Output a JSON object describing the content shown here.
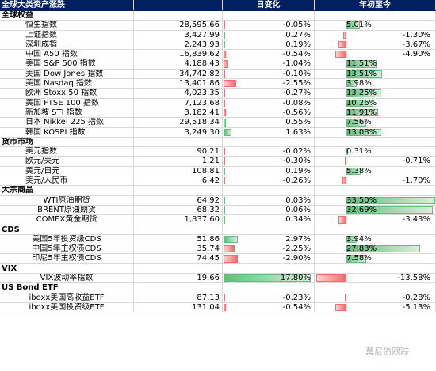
{
  "header": {
    "title": "全球大类资产涨跌",
    "day_label": "日变化",
    "ytd_label": "年初至今"
  },
  "sections": [
    {
      "name": "全球权益",
      "rows": [
        {
          "name": "恒生指数",
          "price": "28,595.66",
          "day": -0.05,
          "day_text": "-0.05%",
          "ytd": 5.01,
          "ytd_text": "5.01%"
        },
        {
          "name": "上证指数",
          "price": "3,427.99",
          "day": 0.27,
          "day_text": "0.27%",
          "ytd": -1.3,
          "ytd_text": "-1.30%"
        },
        {
          "name": "深圳成指",
          "price": "2,243.93",
          "day": 0.19,
          "day_text": "0.19%",
          "ytd": -3.67,
          "ytd_text": "-3.67%"
        },
        {
          "name": "中国 A50 指数",
          "price": "16,839.62",
          "day": -0.54,
          "day_text": "-0.54%",
          "ytd": -4.9,
          "ytd_text": "-4.90%"
        },
        {
          "name": "美国 S&P 500 指数",
          "price": "4,188.43",
          "day": -1.04,
          "day_text": "-1.04%",
          "ytd": 11.51,
          "ytd_text": "11.51%"
        },
        {
          "name": "美国 Dow Jones 指数",
          "price": "34,742.82",
          "day": -0.1,
          "day_text": "-0.10%",
          "ytd": 13.51,
          "ytd_text": "13.51%"
        },
        {
          "name": "美国 Nasdaq 指数",
          "price": "13,401.86",
          "day": -2.55,
          "day_text": "-2.55%",
          "ytd": 3.98,
          "ytd_text": "3.98%"
        },
        {
          "name": "欧洲 Stoxx 50 指数",
          "price": "4,023.35",
          "day": -0.27,
          "day_text": "-0.27%",
          "ytd": 13.25,
          "ytd_text": "13.25%"
        },
        {
          "name": "美国 FTSE 100 指数",
          "price": "7,123.68",
          "day": -0.08,
          "day_text": "-0.08%",
          "ytd": 10.26,
          "ytd_text": "10.26%"
        },
        {
          "name": "新加坡 STI 指数",
          "price": "3,182.41",
          "day": -0.56,
          "day_text": "-0.56%",
          "ytd": 11.91,
          "ytd_text": "11.91%"
        },
        {
          "name": "日本 Nikkei 225 指数",
          "price": "29,518.34",
          "day": 0.55,
          "day_text": "0.55%",
          "ytd": 7.56,
          "ytd_text": "7.56%"
        },
        {
          "name": "韩国 KOSPI 指数",
          "price": "3,249.30",
          "day": 1.63,
          "day_text": "1.63%",
          "ytd": 13.08,
          "ytd_text": "13.08%"
        }
      ]
    },
    {
      "name": "货币市场",
      "rows": [
        {
          "name": "美元指数",
          "price": "90.21",
          "day": -0.02,
          "day_text": "-0.02%",
          "ytd": 0.31,
          "ytd_text": "0.31%"
        },
        {
          "name": "欧元/美元",
          "price": "1.21",
          "day": -0.3,
          "day_text": "-0.30%",
          "ytd": -0.71,
          "ytd_text": "-0.71%"
        },
        {
          "name": "美元/日元",
          "price": "108.81",
          "day": 0.19,
          "day_text": "0.19%",
          "ytd": 5.38,
          "ytd_text": "5.38%"
        },
        {
          "name": "美元/人民币",
          "price": "6.42",
          "day": -0.26,
          "day_text": "-0.26%",
          "ytd": -1.7,
          "ytd_text": "-1.70%"
        }
      ]
    },
    {
      "name": "大宗商品",
      "rows": [
        {
          "name": "WTI原油期货",
          "price": "64.92",
          "day": 0.03,
          "day_text": "0.03%",
          "ytd": 33.5,
          "ytd_text": "33.50%"
        },
        {
          "name": "BRENT原油期货",
          "price": "68.32",
          "day": 0.06,
          "day_text": "0.06%",
          "ytd": 32.69,
          "ytd_text": "32.69%"
        },
        {
          "name": "COMEX黄金期货",
          "price": "1,837.60",
          "day": 0.34,
          "day_text": "0.34%",
          "ytd": -3.43,
          "ytd_text": "-3.43%"
        }
      ]
    },
    {
      "name": "CDS",
      "rows": [
        {
          "name": "美国5年投资级CDS",
          "price": "51.86",
          "day": 2.97,
          "day_text": "2.97%",
          "ytd": 3.94,
          "ytd_text": "3.94%"
        },
        {
          "name": "中国5年主权债CDS",
          "price": "35.74",
          "day": -2.25,
          "day_text": "-2.25%",
          "ytd": 27.83,
          "ytd_text": "27.83%"
        },
        {
          "name": "印尼5年主权债CDS",
          "price": "74.45",
          "day": -2.9,
          "day_text": "-2.90%",
          "ytd": 7.58,
          "ytd_text": "7.58%"
        }
      ]
    },
    {
      "name": "VIX",
      "rows": [
        {
          "name": "VIX波动率指数",
          "price": "19.66",
          "day": 17.8,
          "day_text": "17.80%",
          "ytd": -13.58,
          "ytd_text": "-13.58%"
        }
      ]
    },
    {
      "name": "US Bond ETF",
      "rows": [
        {
          "name": "iboxx美国高收益ETF",
          "price": "87.13",
          "day": -0.23,
          "day_text": "-0.23%",
          "ytd": -0.28,
          "ytd_text": "-0.28%"
        },
        {
          "name": "iboxx美国投资级ETF",
          "price": "131.04",
          "day": -0.54,
          "day_text": "-0.54%",
          "ytd": -5.13,
          "ytd_text": "-5.13%"
        }
      ]
    }
  ],
  "watermark": "莫尼债跟踪",
  "colors": {
    "header_bg": "#002060",
    "pos_bar": "#63be7b",
    "neg_bar": "#f8696b"
  }
}
